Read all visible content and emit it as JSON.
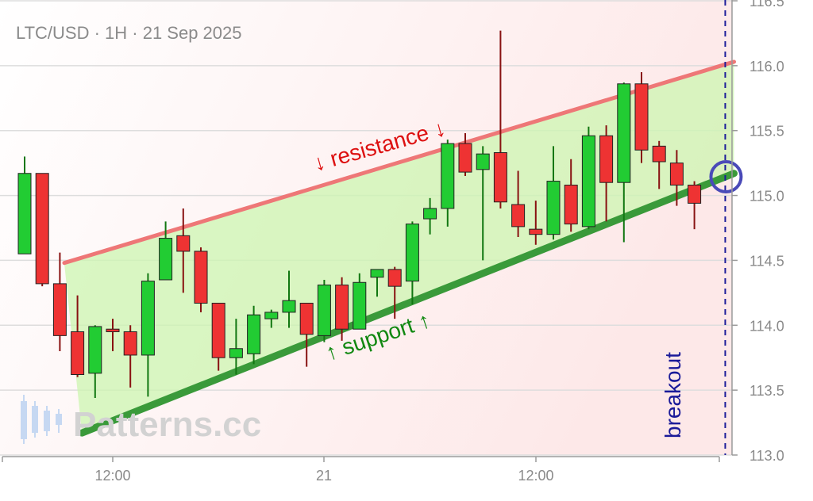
{
  "chart_data": {
    "type": "candlestick",
    "title": "LTC/USD · 1H · 21 Sep 2025",
    "ylim": [
      113.0,
      116.5
    ],
    "y_ticks": [
      "113.0",
      "113.5",
      "114.0",
      "114.5",
      "115.0",
      "115.5",
      "116.0",
      "116.5"
    ],
    "x_ticks": [
      "12:00",
      "21",
      "12:00"
    ],
    "grid": true,
    "colors": {
      "up": "#22cc33",
      "down": "#ee3333",
      "resistance": "#ee7777",
      "support": "#3a9a3a",
      "breakout": "#1a1a99",
      "channel_fill": "#ccf5b0"
    },
    "candles": [
      {
        "o": 114.55,
        "h": 115.3,
        "l": 114.55,
        "c": 115.17
      },
      {
        "o": 115.17,
        "h": 115.17,
        "l": 114.3,
        "c": 114.32
      },
      {
        "o": 114.32,
        "h": 114.56,
        "l": 113.8,
        "c": 113.92
      },
      {
        "o": 113.95,
        "h": 114.23,
        "l": 113.6,
        "c": 113.62
      },
      {
        "o": 113.63,
        "h": 114.0,
        "l": 113.44,
        "c": 113.99
      },
      {
        "o": 113.97,
        "h": 114.05,
        "l": 113.8,
        "c": 113.95
      },
      {
        "o": 113.95,
        "h": 114.0,
        "l": 113.52,
        "c": 113.77
      },
      {
        "o": 113.77,
        "h": 114.4,
        "l": 113.45,
        "c": 114.34
      },
      {
        "o": 114.35,
        "h": 114.8,
        "l": 114.35,
        "c": 114.67
      },
      {
        "o": 114.69,
        "h": 114.9,
        "l": 114.25,
        "c": 114.57
      },
      {
        "o": 114.57,
        "h": 114.6,
        "l": 114.1,
        "c": 114.17
      },
      {
        "o": 114.17,
        "h": 114.17,
        "l": 113.65,
        "c": 113.75
      },
      {
        "o": 113.75,
        "h": 114.05,
        "l": 113.62,
        "c": 113.82
      },
      {
        "o": 113.78,
        "h": 114.15,
        "l": 113.7,
        "c": 114.08
      },
      {
        "o": 114.05,
        "h": 114.12,
        "l": 113.98,
        "c": 114.1
      },
      {
        "o": 114.1,
        "h": 114.42,
        "l": 113.98,
        "c": 114.19
      },
      {
        "o": 114.17,
        "h": 114.17,
        "l": 113.68,
        "c": 113.93
      },
      {
        "o": 113.92,
        "h": 114.35,
        "l": 113.87,
        "c": 114.31
      },
      {
        "o": 114.31,
        "h": 114.37,
        "l": 113.88,
        "c": 113.97
      },
      {
        "o": 113.97,
        "h": 114.4,
        "l": 113.97,
        "c": 114.33
      },
      {
        "o": 114.37,
        "h": 114.4,
        "l": 114.22,
        "c": 114.43
      },
      {
        "o": 114.43,
        "h": 114.45,
        "l": 114.05,
        "c": 114.3
      },
      {
        "o": 114.34,
        "h": 114.8,
        "l": 114.16,
        "c": 114.78
      },
      {
        "o": 114.82,
        "h": 114.98,
        "l": 114.7,
        "c": 114.9
      },
      {
        "o": 114.9,
        "h": 115.43,
        "l": 114.76,
        "c": 115.4
      },
      {
        "o": 115.4,
        "h": 115.48,
        "l": 115.15,
        "c": 115.18
      },
      {
        "o": 115.2,
        "h": 115.38,
        "l": 114.5,
        "c": 115.32
      },
      {
        "o": 115.33,
        "h": 116.27,
        "l": 114.9,
        "c": 114.95
      },
      {
        "o": 114.93,
        "h": 115.19,
        "l": 114.68,
        "c": 114.76
      },
      {
        "o": 114.74,
        "h": 114.96,
        "l": 114.62,
        "c": 114.7
      },
      {
        "o": 114.7,
        "h": 115.38,
        "l": 114.66,
        "c": 115.11
      },
      {
        "o": 115.08,
        "h": 115.28,
        "l": 114.72,
        "c": 114.78
      },
      {
        "o": 114.76,
        "h": 115.53,
        "l": 114.74,
        "c": 115.46
      },
      {
        "o": 115.46,
        "h": 115.54,
        "l": 114.8,
        "c": 115.1
      },
      {
        "o": 115.1,
        "h": 115.87,
        "l": 114.64,
        "c": 115.86
      },
      {
        "o": 115.86,
        "h": 115.95,
        "l": 115.25,
        "c": 115.35
      },
      {
        "o": 115.38,
        "h": 115.42,
        "l": 115.05,
        "c": 115.26
      },
      {
        "o": 115.25,
        "h": 115.35,
        "l": 114.92,
        "c": 115.08
      },
      {
        "o": 115.08,
        "h": 115.11,
        "l": 114.74,
        "c": 114.94
      }
    ],
    "resistance": {
      "label": "↓ resistance ↓",
      "start": [
        2.25,
        114.48
      ],
      "end": [
        40.25,
        116.03
      ]
    },
    "support": {
      "label": "↑ support ↑",
      "start": [
        3.25,
        113.17
      ],
      "end": [
        40.25,
        115.17
      ]
    },
    "breakout": {
      "label": "breakout",
      "x": 39.75,
      "circle_y": 115.15
    },
    "watermark": "Patterns.cc"
  }
}
